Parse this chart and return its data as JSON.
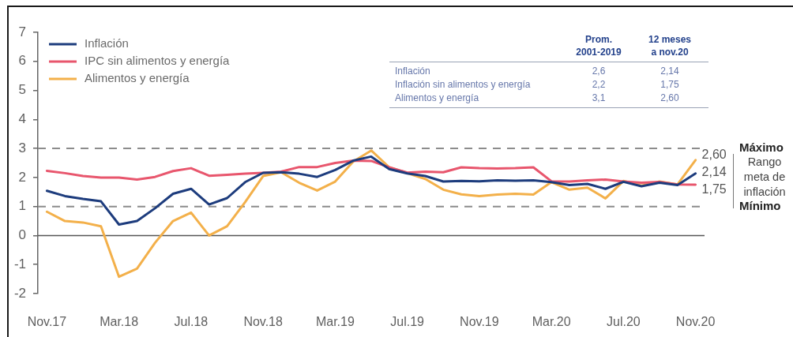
{
  "chart_data": [
    {
      "type": "line",
      "categories": [
        "Nov.17",
        null,
        null,
        null,
        "Mar.18",
        null,
        null,
        null,
        "Jul.18",
        null,
        null,
        null,
        "Nov.18",
        null,
        null,
        null,
        "Mar.19",
        null,
        null,
        null,
        "Jul.19",
        null,
        null,
        null,
        "Nov.19",
        null,
        null,
        null,
        "Mar.20",
        null,
        null,
        null,
        "Jul.20",
        null,
        null,
        null,
        "Nov.20"
      ],
      "series": [
        {
          "name": "Inflación",
          "color": "#1d3c7d",
          "values": [
            1.54,
            1.36,
            1.26,
            1.18,
            0.38,
            0.5,
            0.94,
            1.44,
            1.61,
            1.07,
            1.29,
            1.84,
            2.16,
            2.18,
            2.13,
            2.02,
            2.26,
            2.58,
            2.72,
            2.29,
            2.14,
            2.05,
            1.86,
            1.88,
            1.87,
            1.9,
            1.89,
            1.9,
            1.84,
            1.74,
            1.78,
            1.61,
            1.85,
            1.7,
            1.82,
            1.74,
            2.14
          ],
          "value_labels": [
            null,
            null,
            null,
            null,
            null,
            null,
            null,
            null,
            null,
            null,
            null,
            null,
            null,
            null,
            null,
            null,
            null,
            null,
            null,
            null,
            null,
            null,
            null,
            null,
            null,
            null,
            null,
            null,
            null,
            null,
            null,
            null,
            null,
            null,
            null,
            null,
            "2,14"
          ]
        },
        {
          "name": "IPC sin alimentos y energía",
          "color": "#e8566d",
          "values": [
            2.23,
            2.15,
            2.05,
            2.0,
            2.0,
            1.93,
            2.02,
            2.22,
            2.32,
            2.06,
            2.09,
            2.13,
            2.16,
            2.2,
            2.36,
            2.36,
            2.5,
            2.58,
            2.57,
            2.35,
            2.17,
            2.2,
            2.18,
            2.35,
            2.32,
            2.31,
            2.32,
            2.35,
            1.87,
            1.86,
            1.9,
            1.93,
            1.86,
            1.82,
            1.85,
            1.76,
            1.75
          ],
          "value_labels": [
            null,
            null,
            null,
            null,
            null,
            null,
            null,
            null,
            null,
            null,
            null,
            null,
            null,
            null,
            null,
            null,
            null,
            null,
            null,
            null,
            null,
            null,
            null,
            null,
            null,
            null,
            null,
            null,
            null,
            null,
            null,
            null,
            null,
            null,
            null,
            null,
            "1,75"
          ]
        },
        {
          "name": "Alimentos y energía",
          "color": "#f3b04a",
          "values": [
            0.82,
            0.5,
            0.45,
            0.32,
            -1.42,
            -1.14,
            -0.25,
            0.5,
            0.79,
            0.0,
            0.32,
            1.15,
            2.05,
            2.18,
            1.82,
            1.55,
            1.86,
            2.55,
            2.93,
            2.35,
            2.15,
            1.95,
            1.58,
            1.42,
            1.36,
            1.41,
            1.44,
            1.41,
            1.84,
            1.58,
            1.65,
            1.28,
            1.88,
            1.72,
            1.86,
            1.76,
            2.6
          ],
          "value_labels": [
            null,
            null,
            null,
            null,
            null,
            null,
            null,
            null,
            null,
            null,
            null,
            null,
            null,
            null,
            null,
            null,
            null,
            null,
            null,
            null,
            null,
            null,
            null,
            null,
            null,
            null,
            null,
            null,
            null,
            null,
            null,
            null,
            null,
            null,
            null,
            null,
            "2,60"
          ]
        }
      ],
      "ylim": [
        -2,
        7
      ],
      "yticks": [
        -2,
        -1,
        0,
        1,
        2,
        3,
        4,
        5,
        6,
        7
      ],
      "ref_lines": [
        {
          "axis": "y",
          "value": 3,
          "label": "Máximo",
          "color": "#8c8c8c",
          "line_style": "dashed"
        },
        {
          "axis": "y",
          "value": 1,
          "label": "Mínimo",
          "color": "#8c8c8c",
          "line_style": "dashed"
        },
        {
          "axis": "y",
          "value": 0,
          "color": "#555555",
          "line_style": "solid"
        }
      ],
      "annotations": [
        "Rango meta de inflación"
      ],
      "legend": "top left",
      "marker": "none"
    },
    {
      "type": "other",
      "categories": [
        "Inflación",
        "Inflación sin alimentos y energía",
        "Alimentos y energía"
      ],
      "series": [
        {
          "name": "Prom. 2001-2019",
          "values": [
            2.6,
            2.2,
            3.1
          ],
          "value_labels": [
            "2,6",
            "2,2",
            "3,1"
          ]
        },
        {
          "name": "12 meses a nov.20",
          "values": [
            2.14,
            1.75,
            2.6
          ],
          "value_labels": [
            "2,14",
            "1,75",
            "2,60"
          ]
        }
      ]
    }
  ]
}
